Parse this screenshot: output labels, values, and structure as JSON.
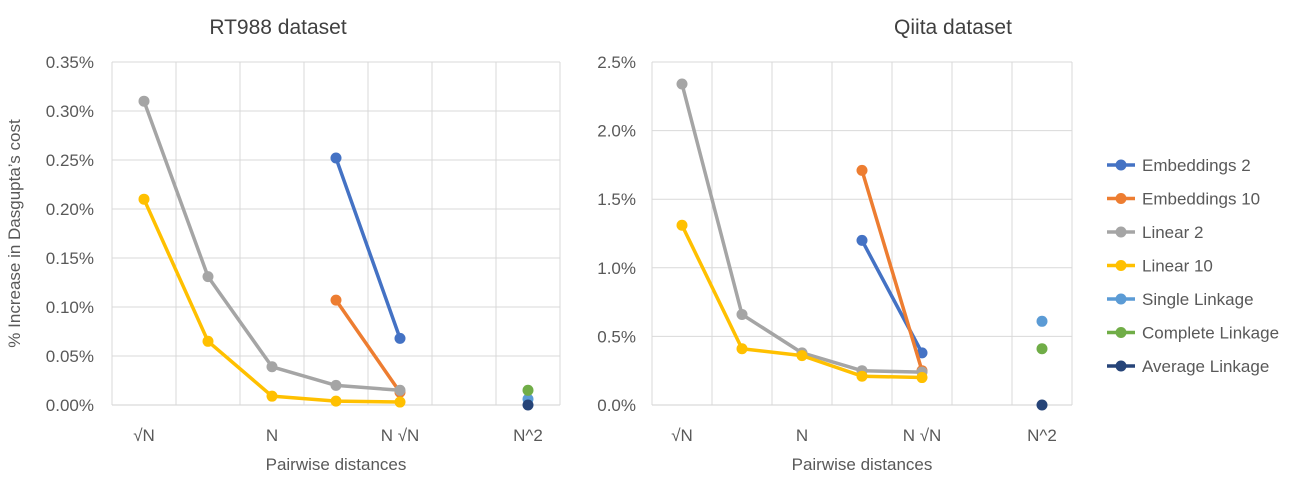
{
  "legend": {
    "placement": "right",
    "entries": [
      {
        "name": "Embeddings 2",
        "color": "#4472C4"
      },
      {
        "name": "Embeddings 10",
        "color": "#ED7D31"
      },
      {
        "name": "Linear 2",
        "color": "#A5A5A5"
      },
      {
        "name": "Linear 10",
        "color": "#FFC000"
      },
      {
        "name": "Single Linkage",
        "color": "#5B9BD5"
      },
      {
        "name": "Complete Linkage",
        "color": "#70AD47"
      },
      {
        "name": "Average Linkage",
        "color": "#264478"
      }
    ]
  },
  "chart_data": [
    {
      "type": "line",
      "title": "RT988 dataset",
      "xlabel": "Pairwise distances",
      "ylabel": "% Increase in Dasgupta’s cost",
      "x_categories": [
        "√N",
        "",
        "N",
        "",
        "N √N",
        "",
        "N^2"
      ],
      "y_ticks": [
        "0.00%",
        "0.05%",
        "0.10%",
        "0.15%",
        "0.20%",
        "0.25%",
        "0.30%",
        "0.35%"
      ],
      "ylim": [
        0,
        0.35
      ],
      "grid": true,
      "series": [
        {
          "name": "Embeddings 2",
          "color": "#4472C4",
          "points": [
            [
              3,
              0.252
            ],
            [
              4,
              0.068
            ]
          ]
        },
        {
          "name": "Embeddings 10",
          "color": "#ED7D31",
          "points": [
            [
              3,
              0.107
            ],
            [
              4,
              0.013
            ]
          ]
        },
        {
          "name": "Linear 2",
          "color": "#A5A5A5",
          "points": [
            [
              0,
              0.31
            ],
            [
              1,
              0.131
            ],
            [
              2,
              0.039
            ],
            [
              3,
              0.02
            ],
            [
              4,
              0.015
            ]
          ]
        },
        {
          "name": "Linear 10",
          "color": "#FFC000",
          "points": [
            [
              0,
              0.21
            ],
            [
              1,
              0.065
            ],
            [
              2,
              0.009
            ],
            [
              3,
              0.004
            ],
            [
              4,
              0.003
            ]
          ]
        },
        {
          "name": "Single Linkage",
          "color": "#5B9BD5",
          "points": [
            [
              6,
              0.006
            ]
          ]
        },
        {
          "name": "Complete Linkage",
          "color": "#70AD47",
          "points": [
            [
              6,
              0.015
            ]
          ]
        },
        {
          "name": "Average Linkage",
          "color": "#264478",
          "points": [
            [
              6,
              0.0
            ]
          ]
        }
      ]
    },
    {
      "type": "line",
      "title": "Qiita dataset",
      "xlabel": "Pairwise distances",
      "ylabel": "",
      "x_categories": [
        "√N",
        "",
        "N",
        "",
        "N √N",
        "",
        "N^2"
      ],
      "y_ticks": [
        "0.0%",
        "0.5%",
        "1.0%",
        "1.5%",
        "2.0%",
        "2.5%"
      ],
      "ylim": [
        0,
        2.5
      ],
      "grid": true,
      "series": [
        {
          "name": "Embeddings 2",
          "color": "#4472C4",
          "points": [
            [
              3,
              1.2
            ],
            [
              4,
              0.38
            ]
          ]
        },
        {
          "name": "Embeddings 10",
          "color": "#ED7D31",
          "points": [
            [
              3,
              1.71
            ],
            [
              4,
              0.25
            ]
          ]
        },
        {
          "name": "Linear 2",
          "color": "#A5A5A5",
          "points": [
            [
              0,
              2.34
            ],
            [
              1,
              0.66
            ],
            [
              2,
              0.38
            ],
            [
              3,
              0.25
            ],
            [
              4,
              0.24
            ]
          ]
        },
        {
          "name": "Linear 10",
          "color": "#FFC000",
          "points": [
            [
              0,
              1.31
            ],
            [
              1,
              0.41
            ],
            [
              2,
              0.36
            ],
            [
              3,
              0.21
            ],
            [
              4,
              0.2
            ]
          ]
        },
        {
          "name": "Single Linkage",
          "color": "#5B9BD5",
          "points": [
            [
              6,
              0.61
            ]
          ]
        },
        {
          "name": "Complete Linkage",
          "color": "#70AD47",
          "points": [
            [
              6,
              0.41
            ]
          ]
        },
        {
          "name": "Average Linkage",
          "color": "#264478",
          "points": [
            [
              6,
              0.0
            ]
          ]
        }
      ]
    }
  ]
}
